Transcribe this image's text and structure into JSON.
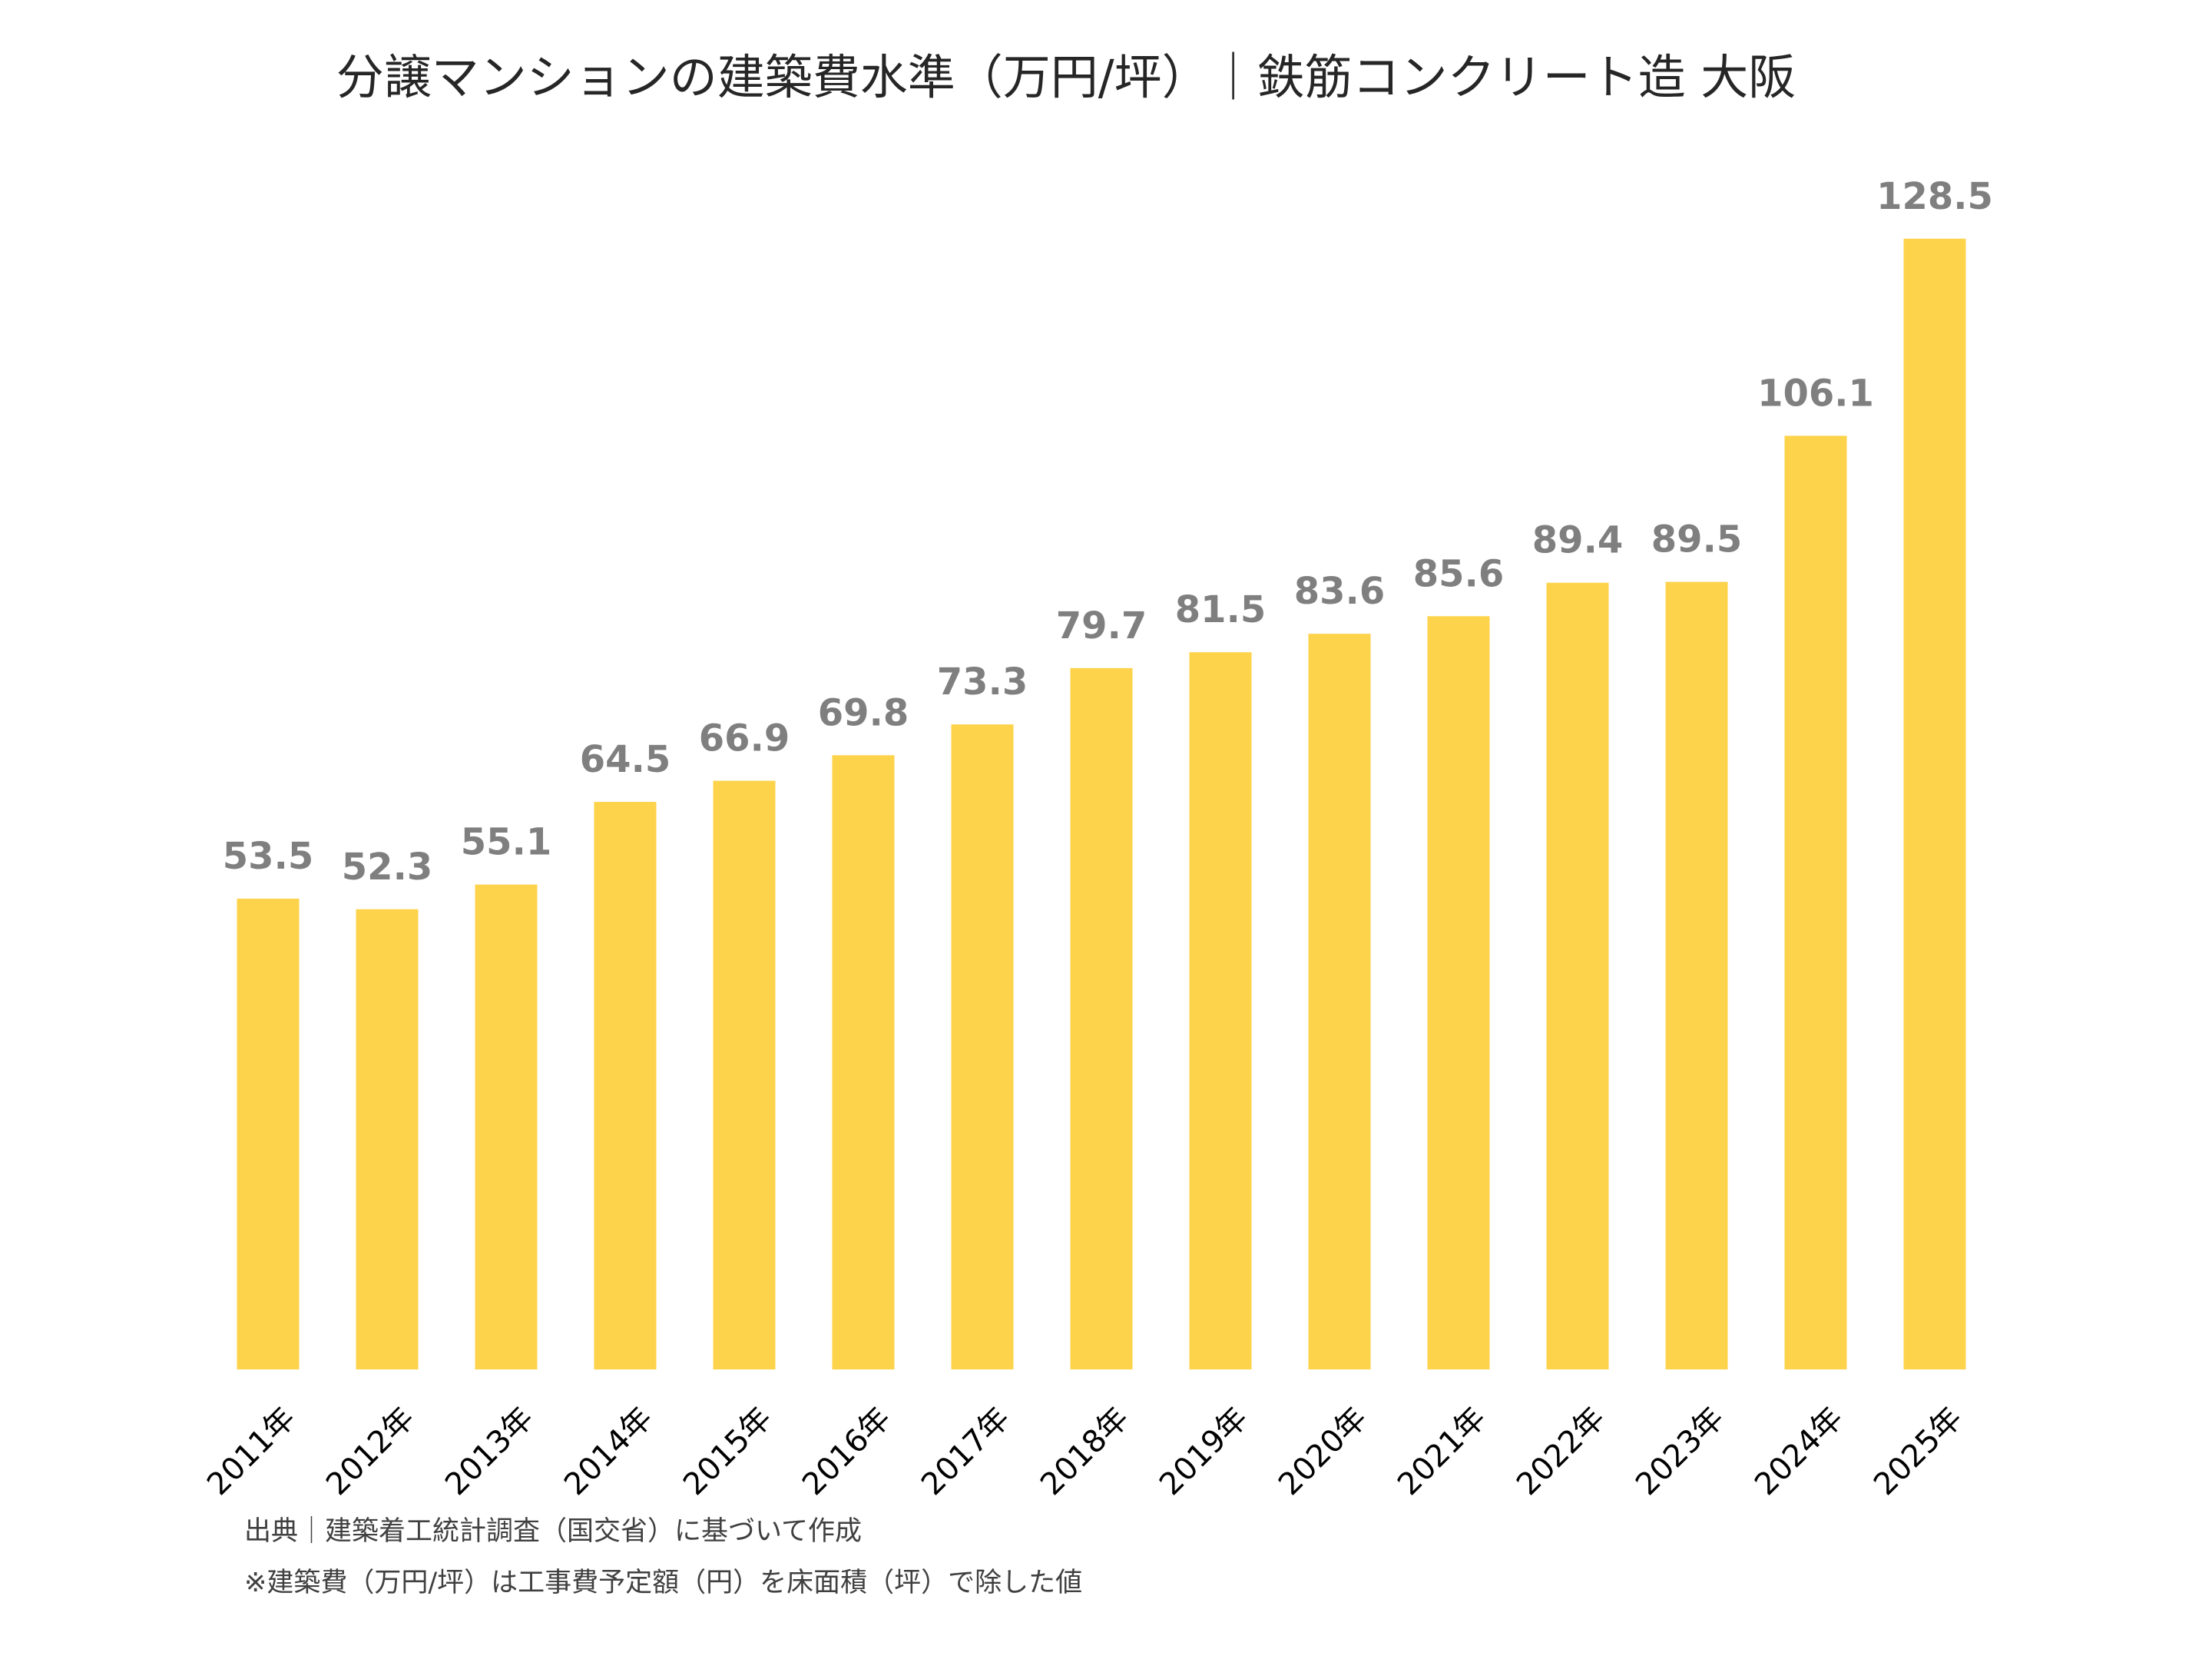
{
  "chart_data": {
    "type": "bar",
    "title": "分譲マンションの建築費水準（万円/坪）｜鉄筋コンクリート造 大阪",
    "categories": [
      "2011年",
      "2012年",
      "2013年",
      "2014年",
      "2015年",
      "2016年",
      "2017年",
      "2018年",
      "2019年",
      "2020年",
      "2021年",
      "2022年",
      "2023年",
      "2024年",
      "2025年"
    ],
    "values": [
      53.5,
      52.3,
      55.1,
      64.5,
      66.9,
      69.8,
      73.3,
      79.7,
      81.5,
      83.6,
      85.6,
      89.4,
      89.5,
      106.1,
      128.5
    ],
    "color": "#fdd34b",
    "ylim": [
      0,
      140
    ],
    "notes": [
      "出典｜建築着工統計調査（国交省）に基づいて作成",
      "※建築費（万円/坪）は工事費予定額（円）を床面積（坪）で除した値"
    ]
  }
}
